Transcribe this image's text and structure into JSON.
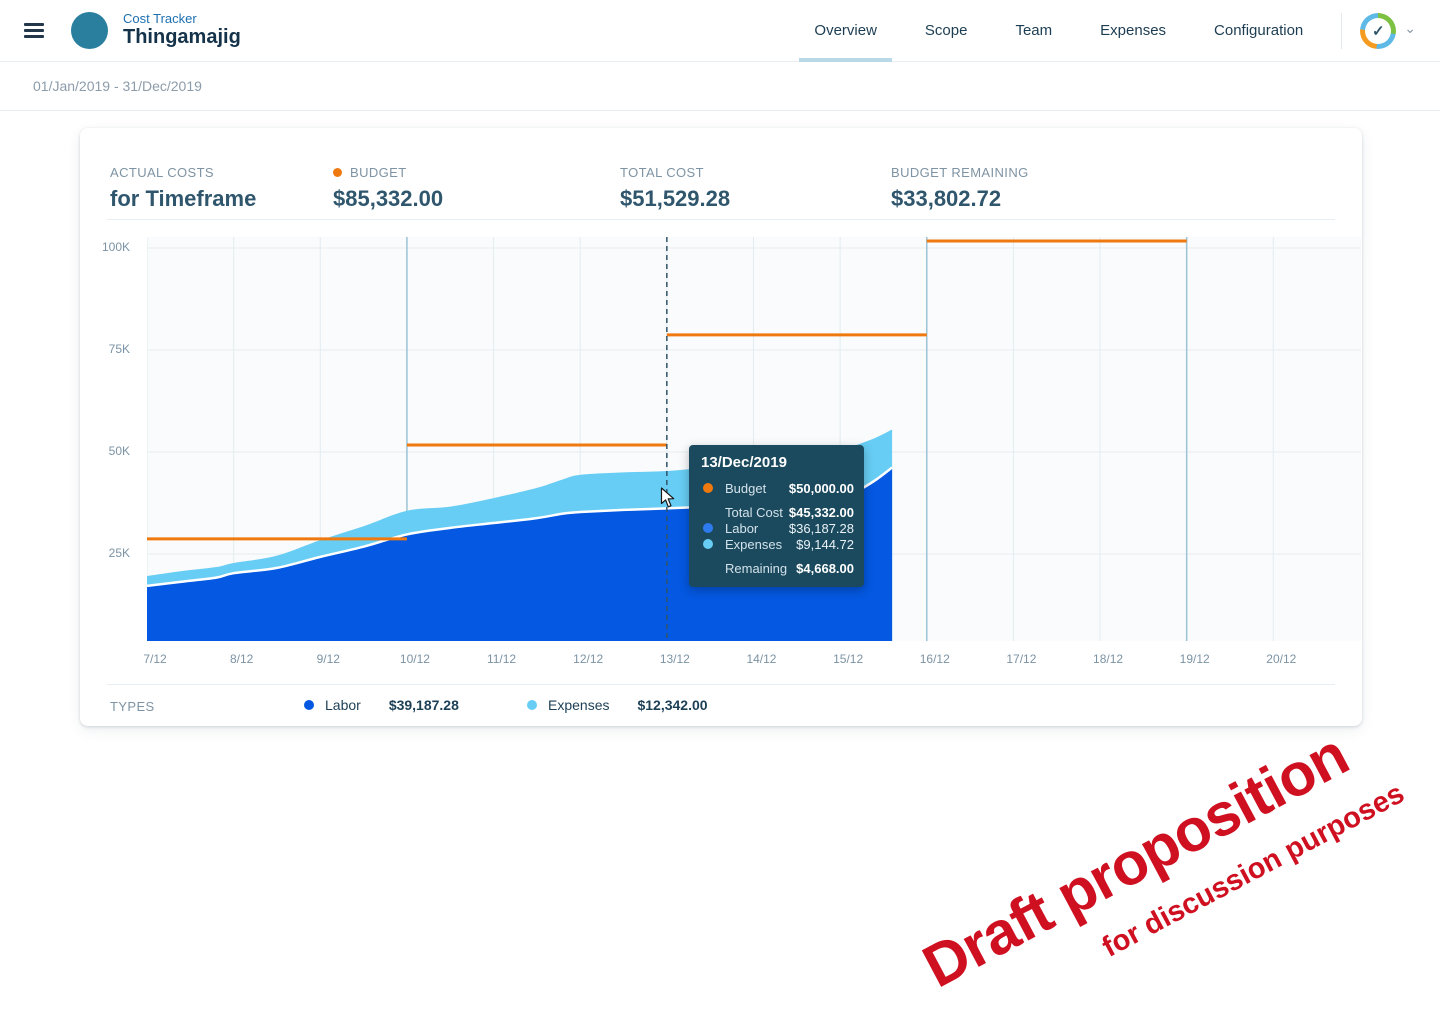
{
  "header": {
    "app_label": "Cost Tracker",
    "app_title": "Thingamajig",
    "tabs": [
      {
        "label": "Overview",
        "active": true
      },
      {
        "label": "Scope",
        "active": false
      },
      {
        "label": "Team",
        "active": false
      },
      {
        "label": "Expenses",
        "active": false
      },
      {
        "label": "Configuration",
        "active": false
      }
    ],
    "avatar_check": "✓"
  },
  "datebar": {
    "range": "01/Jan/2019 - 31/Dec/2019"
  },
  "stats": {
    "actual_costs_label": "ACTUAL COSTS",
    "actual_costs_value": "for Timeframe",
    "budget_label": "BUDGET",
    "budget_value": "$85,332.00",
    "budget_dot_color": "#f0790f",
    "total_cost_label": "TOTAL COST",
    "total_cost_value": "$51,529.28",
    "remaining_label": "BUDGET REMAINING",
    "remaining_value": "$33,802.72"
  },
  "tooltip": {
    "title": "13/Dec/2019",
    "rows": [
      {
        "label": "Budget",
        "value": "$50,000.00",
        "dot": "#f0790f",
        "bold": true
      },
      {
        "label": "Total Cost",
        "value": "$45,332.00",
        "dot": null,
        "bold": true
      },
      {
        "label": "Labor",
        "value": "$36,187.28",
        "dot": "#2e7bf0",
        "bold": false
      },
      {
        "label": "Expenses",
        "value": "$9,144.72",
        "dot": "#67cdf4",
        "bold": false
      },
      {
        "label": "Remaining",
        "value": "$4,668.00",
        "dot": null,
        "bold": true
      }
    ]
  },
  "legend": {
    "types_label": "TYPES",
    "items": [
      {
        "label": "Labor",
        "value": "$39,187.28",
        "color": "#0458e1"
      },
      {
        "label": "Expenses",
        "value": "$12,342.00",
        "color": "#67cdf4"
      }
    ]
  },
  "watermark": {
    "line1": "Draft proposition",
    "line2": "for discussion purposes",
    "color": "#cf1021"
  },
  "chart_data": {
    "type": "area",
    "title": "Actual Costs for Timeframe",
    "unit": "USD",
    "grid": true,
    "legend_position": "bottom",
    "ylim": [
      0,
      102000
    ],
    "y_ticks": [
      {
        "value": 25000,
        "label": "25K"
      },
      {
        "value": 50000,
        "label": "50K"
      },
      {
        "value": 75000,
        "label": "75K"
      },
      {
        "value": 100000,
        "label": "100K"
      }
    ],
    "x_ticks": [
      {
        "day": 7,
        "label": "7/12"
      },
      {
        "day": 8,
        "label": "8/12"
      },
      {
        "day": 9,
        "label": "9/12"
      },
      {
        "day": 10,
        "label": "10/12"
      },
      {
        "day": 11,
        "label": "11/12"
      },
      {
        "day": 12,
        "label": "12/12"
      },
      {
        "day": 13,
        "label": "13/12"
      },
      {
        "day": 14,
        "label": "14/12"
      },
      {
        "day": 15,
        "label": "15/12"
      },
      {
        "day": 16,
        "label": "16/12"
      },
      {
        "day": 17,
        "label": "17/12"
      },
      {
        "day": 18,
        "label": "18/12"
      },
      {
        "day": 19,
        "label": "19/12"
      },
      {
        "day": 20,
        "label": "20/12"
      }
    ],
    "series_x_days": [
      7,
      7.4,
      7.8,
      8,
      8.5,
      9,
      9.5,
      10,
      10.5,
      11,
      11.5,
      11.8,
      12,
      12.5,
      13,
      13.5,
      14,
      14.3,
      14.7,
      15,
      15.2,
      15.4,
      15.6
    ],
    "series": [
      {
        "name": "Labor",
        "color": "#0458e1",
        "values": [
          17200,
          18200,
          19200,
          20300,
          21600,
          24300,
          26800,
          29800,
          31400,
          32600,
          33800,
          34900,
          35300,
          35800,
          36187,
          36600,
          37000,
          37300,
          37800,
          38800,
          40500,
          43000,
          46200
        ]
      },
      {
        "name": "Total Cost (Labor + Expenses)",
        "color": "#67cdf4",
        "values": [
          19600,
          20800,
          21800,
          22800,
          24600,
          28400,
          31800,
          35600,
          36600,
          38700,
          41200,
          43300,
          44400,
          45000,
          45332,
          46300,
          47300,
          47900,
          48800,
          50300,
          51800,
          53400,
          55500
        ]
      }
    ],
    "budget_color": "#f0790f",
    "budget_steps": [
      {
        "from_day": 7,
        "to_day": 10,
        "value": 27000
      },
      {
        "from_day": 10,
        "to_day": 13,
        "value": 50000
      },
      {
        "from_day": 13,
        "to_day": 16,
        "value": 77000
      },
      {
        "from_day": 16,
        "to_day": 19,
        "value": 100000
      }
    ],
    "period_boundary_days": [
      10,
      16,
      19
    ],
    "hover_day": 13
  }
}
